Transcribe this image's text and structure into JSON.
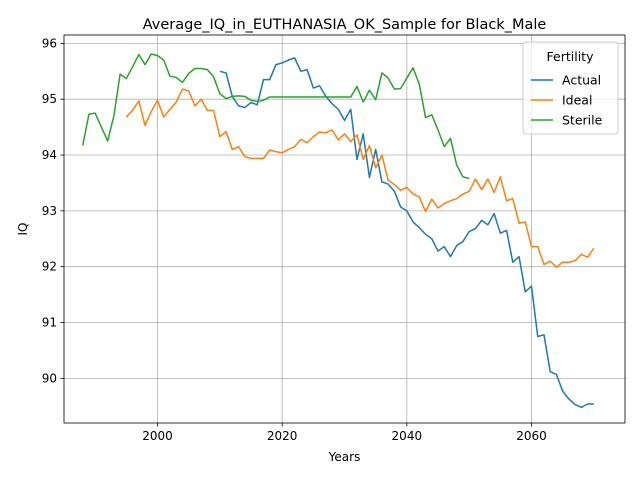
{
  "chart_data": {
    "type": "line",
    "title": "Average_IQ_in_EUTHANASIA_OK_Sample for Black_Male",
    "xlabel": "Years",
    "ylabel": "IQ",
    "xlim": [
      1985,
      2075
    ],
    "ylim": [
      89.2,
      96.15
    ],
    "xticks": [
      2000,
      2020,
      2040,
      2060
    ],
    "yticks": [
      90,
      91,
      92,
      93,
      94,
      95,
      96
    ],
    "grid": true,
    "legend": {
      "title": "Fertility",
      "placement": "top-right"
    },
    "series": [
      {
        "name": "Actual",
        "color": "#1f77b4",
        "x": [
          2010,
          2011,
          2012,
          2013,
          2014,
          2015,
          2016,
          2017,
          2018,
          2019,
          2020,
          2021,
          2022,
          2023,
          2024,
          2025,
          2026,
          2027,
          2028,
          2029,
          2030,
          2031,
          2032,
          2033,
          2034,
          2035,
          2036,
          2037,
          2038,
          2039,
          2040,
          2041,
          2042,
          2043,
          2044,
          2045,
          2046,
          2047,
          2048,
          2049,
          2050,
          2051,
          2052,
          2053,
          2054,
          2055,
          2056,
          2057,
          2058,
          2059,
          2060,
          2061,
          2062,
          2063,
          2064,
          2065,
          2066,
          2067,
          2068,
          2069,
          2070
        ],
        "y": [
          95.5,
          95.47,
          95.05,
          94.88,
          94.85,
          94.94,
          94.9,
          95.35,
          95.35,
          95.62,
          95.65,
          95.7,
          95.74,
          95.5,
          95.53,
          95.2,
          95.24,
          95.05,
          94.92,
          94.82,
          94.62,
          94.82,
          93.92,
          94.38,
          93.6,
          94.1,
          93.52,
          93.48,
          93.35,
          93.07,
          93.0,
          92.8,
          92.7,
          92.58,
          92.5,
          92.28,
          92.36,
          92.18,
          92.38,
          92.45,
          92.63,
          92.68,
          92.83,
          92.75,
          92.95,
          92.6,
          92.65,
          92.08,
          92.18,
          91.55,
          91.65,
          90.75,
          90.78,
          90.12,
          90.07,
          89.77,
          89.63,
          89.53,
          89.48,
          89.54,
          89.54
        ]
      },
      {
        "name": "Ideal",
        "color": "#ff7f0e",
        "x": [
          1995,
          1996,
          1997,
          1998,
          1999,
          2000,
          2001,
          2002,
          2003,
          2004,
          2005,
          2006,
          2007,
          2008,
          2009,
          2010,
          2011,
          2012,
          2013,
          2014,
          2015,
          2016,
          2017,
          2018,
          2019,
          2020,
          2021,
          2022,
          2023,
          2024,
          2025,
          2026,
          2027,
          2028,
          2029,
          2030,
          2031,
          2032,
          2033,
          2034,
          2035,
          2036,
          2037,
          2038,
          2039,
          2040,
          2041,
          2042,
          2043,
          2044,
          2045,
          2046,
          2047,
          2048,
          2049,
          2050,
          2051,
          2052,
          2053,
          2054,
          2055,
          2056,
          2057,
          2058,
          2059,
          2060,
          2061,
          2062,
          2063,
          2064,
          2065,
          2066,
          2067,
          2068,
          2069,
          2070
        ],
        "y": [
          94.68,
          94.8,
          94.97,
          94.53,
          94.78,
          94.98,
          94.68,
          94.82,
          94.95,
          95.18,
          95.15,
          94.88,
          95.0,
          94.8,
          94.8,
          94.33,
          94.42,
          94.1,
          94.15,
          93.97,
          93.94,
          93.94,
          93.94,
          94.09,
          94.06,
          94.04,
          94.1,
          94.15,
          94.28,
          94.22,
          94.33,
          94.41,
          94.4,
          94.45,
          94.27,
          94.38,
          94.24,
          94.36,
          93.92,
          94.17,
          93.77,
          94.0,
          93.55,
          93.47,
          93.37,
          93.42,
          93.3,
          93.25,
          92.99,
          93.21,
          93.05,
          93.13,
          93.18,
          93.22,
          93.3,
          93.35,
          93.57,
          93.38,
          93.57,
          93.33,
          93.61,
          93.18,
          93.22,
          92.78,
          92.8,
          92.36,
          92.36,
          92.04,
          92.1,
          91.99,
          92.08,
          92.08,
          92.11,
          92.22,
          92.17,
          92.33
        ]
      },
      {
        "name": "Sterile",
        "color": "#2ca02c",
        "x": [
          1988,
          1989,
          1990,
          1991,
          1992,
          1993,
          1994,
          1995,
          1996,
          1997,
          1998,
          1999,
          2000,
          2001,
          2002,
          2003,
          2004,
          2005,
          2006,
          2007,
          2008,
          2009,
          2010,
          2011,
          2012,
          2013,
          2014,
          2015,
          2016,
          2017,
          2018,
          2019,
          2020,
          2021,
          2022,
          2023,
          2024,
          2025,
          2026,
          2027,
          2028,
          2029,
          2030,
          2031,
          2032,
          2033,
          2034,
          2035,
          2036,
          2037,
          2038,
          2039,
          2040,
          2041,
          2042,
          2043,
          2044,
          2045,
          2046,
          2047,
          2048,
          2049,
          2050
        ],
        "y": [
          94.17,
          94.73,
          94.75,
          94.5,
          94.25,
          94.7,
          95.45,
          95.37,
          95.58,
          95.8,
          95.62,
          95.81,
          95.78,
          95.7,
          95.41,
          95.39,
          95.3,
          95.46,
          95.55,
          95.55,
          95.53,
          95.4,
          95.1,
          95.01,
          95.05,
          95.06,
          95.05,
          94.98,
          94.96,
          94.98,
          95.04,
          95.04,
          95.04,
          95.04,
          95.04,
          95.04,
          95.04,
          95.04,
          95.04,
          95.04,
          95.04,
          95.04,
          95.04,
          95.04,
          95.23,
          94.95,
          95.16,
          94.99,
          95.47,
          95.38,
          95.18,
          95.19,
          95.38,
          95.56,
          95.27,
          94.67,
          94.72,
          94.45,
          94.15,
          94.3,
          93.82,
          93.61,
          93.58
        ]
      }
    ]
  }
}
